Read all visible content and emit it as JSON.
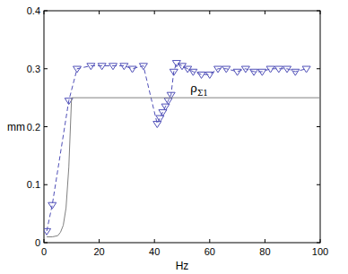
{
  "chart_data": {
    "type": "line",
    "x_label": "Hz",
    "y_label": "mm",
    "annotation": "ρ",
    "annotation_subscript": "Σ1",
    "xlim": [
      0,
      100
    ],
    "xticks": [
      0,
      20,
      40,
      60,
      80,
      100
    ],
    "ylim": [
      0,
      0.4
    ],
    "yticks": [
      0,
      0.1,
      0.2,
      0.3,
      0.4
    ],
    "grid": false,
    "series": [
      {
        "color": "#5050b8",
        "marker": "triangle-down",
        "line_style": "dashed",
        "x": [
          1,
          3,
          9,
          12,
          17,
          21,
          25,
          29,
          32,
          36,
          41,
          42,
          43,
          44,
          45,
          46,
          47,
          48,
          50,
          52,
          54,
          57,
          60,
          63,
          66,
          70,
          73,
          76,
          79,
          82,
          85,
          88,
          91,
          95
        ],
        "values": [
          0.02,
          0.065,
          0.245,
          0.3,
          0.305,
          0.305,
          0.305,
          0.305,
          0.3,
          0.305,
          0.205,
          0.215,
          0.225,
          0.235,
          0.245,
          0.255,
          0.295,
          0.31,
          0.305,
          0.3,
          0.295,
          0.29,
          0.29,
          0.3,
          0.3,
          0.295,
          0.3,
          0.295,
          0.295,
          0.3,
          0.3,
          0.3,
          0.295,
          0.3
        ]
      },
      {
        "color": "#808080",
        "marker": "none",
        "line_style": "solid",
        "x": [
          1,
          3,
          5,
          6,
          7,
          8,
          9,
          10,
          100
        ],
        "values": [
          0.01,
          0.01,
          0.012,
          0.018,
          0.03,
          0.06,
          0.13,
          0.25,
          0.25
        ]
      }
    ]
  }
}
